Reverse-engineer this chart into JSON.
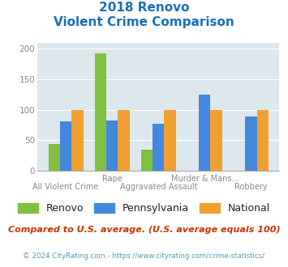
{
  "title_line1": "2018 Renovo",
  "title_line2": "Violent Crime Comparison",
  "categories": [
    "All Violent Crime",
    "Rape",
    "Aggravated Assault",
    "Murder & Mans...",
    "Robbery"
  ],
  "renovo": [
    44,
    193,
    35,
    0,
    0
  ],
  "pennsylvania": [
    81,
    83,
    77,
    125,
    89
  ],
  "national": [
    100,
    100,
    100,
    100,
    100
  ],
  "renovo_color": "#80c040",
  "pennsylvania_color": "#4488dd",
  "national_color": "#f0a030",
  "ylim": [
    0,
    210
  ],
  "yticks": [
    0,
    50,
    100,
    150,
    200
  ],
  "bg_color": "#dce8ee",
  "title_color": "#1a6fbb",
  "footer_text": "Compared to U.S. average. (U.S. average equals 100)",
  "footer_color": "#cc3300",
  "copyright_text": "© 2024 CityRating.com - https://www.cityrating.com/crime-statistics/",
  "copyright_color": "#5599bb",
  "xlabel_top": [
    "",
    "Rape",
    "",
    "Murder & Mans...",
    ""
  ],
  "xlabel_bottom": [
    "All Violent Crime",
    "",
    "Aggravated Assault",
    "",
    "Robbery"
  ],
  "bar_width": 0.25,
  "grid_color": "#ffffff",
  "tick_label_color": "#888888"
}
